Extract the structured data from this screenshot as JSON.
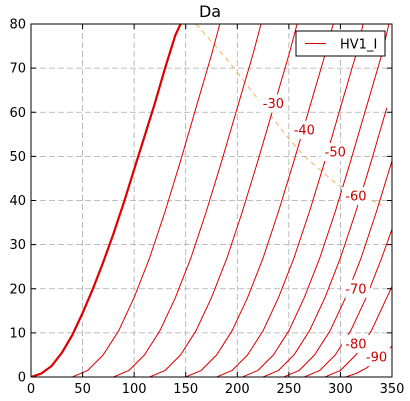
{
  "chart_data": {
    "type": "line",
    "title": "Da",
    "xlabel": "",
    "ylabel": "",
    "xlim": [
      0,
      350
    ],
    "ylim": [
      0,
      80
    ],
    "xticks": [
      0,
      50,
      100,
      150,
      200,
      250,
      300,
      350
    ],
    "yticks": [
      0,
      10,
      20,
      30,
      40,
      50,
      60,
      70,
      80
    ],
    "grid": true,
    "legend": {
      "placement": "top-right",
      "entries": [
        "HV1_I"
      ]
    },
    "colors": {
      "curves": "#dd0000",
      "limit_line": "#f5b060",
      "grid": "#aaaaaa"
    },
    "main_curve": {
      "name": "HV1_I",
      "points": [
        [
          0,
          0
        ],
        [
          10,
          0.8
        ],
        [
          20,
          2.5
        ],
        [
          30,
          5.5
        ],
        [
          40,
          9.5
        ],
        [
          50,
          14.5
        ],
        [
          60,
          20
        ],
        [
          70,
          26
        ],
        [
          80,
          32.5
        ],
        [
          90,
          39.5
        ],
        [
          100,
          47
        ],
        [
          110,
          54.5
        ],
        [
          120,
          62
        ],
        [
          130,
          70
        ],
        [
          140,
          77.5
        ],
        [
          145,
          80
        ]
      ]
    },
    "family": [
      {
        "label": "",
        "points": [
          [
            40,
            0
          ],
          [
            55,
            1.5
          ],
          [
            70,
            5
          ],
          [
            85,
            10.5
          ],
          [
            100,
            18
          ],
          [
            115,
            27
          ],
          [
            130,
            37.5
          ],
          [
            145,
            49
          ],
          [
            160,
            61
          ],
          [
            175,
            73
          ],
          [
            183,
            80
          ]
        ]
      },
      {
        "label": "",
        "points": [
          [
            80,
            0
          ],
          [
            95,
            1.5
          ],
          [
            110,
            5
          ],
          [
            125,
            10.5
          ],
          [
            140,
            18
          ],
          [
            155,
            27
          ],
          [
            170,
            37.5
          ],
          [
            185,
            49
          ],
          [
            200,
            61
          ],
          [
            215,
            73
          ],
          [
            223,
            80
          ]
        ]
      },
      {
        "label": "-30",
        "points": [
          [
            115,
            0
          ],
          [
            130,
            1.5
          ],
          [
            145,
            5
          ],
          [
            160,
            10.5
          ],
          [
            175,
            18
          ],
          [
            190,
            27
          ],
          [
            205,
            37.5
          ],
          [
            220,
            49
          ],
          [
            235,
            61
          ],
          [
            250,
            73
          ],
          [
            258,
            80
          ]
        ]
      },
      {
        "label": "-40",
        "points": [
          [
            150,
            0
          ],
          [
            165,
            1.5
          ],
          [
            180,
            5
          ],
          [
            195,
            10.5
          ],
          [
            210,
            18
          ],
          [
            225,
            27
          ],
          [
            240,
            37.5
          ],
          [
            255,
            49
          ],
          [
            270,
            61
          ],
          [
            285,
            73
          ],
          [
            293,
            80
          ]
        ]
      },
      {
        "label": "-50",
        "points": [
          [
            180,
            0
          ],
          [
            195,
            1.5
          ],
          [
            210,
            5
          ],
          [
            225,
            10.5
          ],
          [
            240,
            18
          ],
          [
            255,
            27
          ],
          [
            270,
            37.5
          ],
          [
            285,
            49
          ],
          [
            300,
            61
          ],
          [
            315,
            73
          ],
          [
            322,
            80
          ]
        ]
      },
      {
        "label": "-60",
        "points": [
          [
            205,
            0
          ],
          [
            220,
            1.5
          ],
          [
            235,
            5
          ],
          [
            250,
            10.5
          ],
          [
            265,
            18
          ],
          [
            280,
            27
          ],
          [
            295,
            37.5
          ],
          [
            310,
            49
          ],
          [
            325,
            61
          ],
          [
            340,
            73
          ],
          [
            347,
            80
          ]
        ]
      },
      {
        "label": "",
        "points": [
          [
            225,
            0
          ],
          [
            240,
            1.5
          ],
          [
            255,
            5
          ],
          [
            270,
            10.5
          ],
          [
            285,
            18
          ],
          [
            300,
            27
          ],
          [
            315,
            37.5
          ],
          [
            330,
            49
          ],
          [
            345,
            61
          ]
        ]
      },
      {
        "label": "-70",
        "points": [
          [
            245,
            0
          ],
          [
            260,
            1.5
          ],
          [
            275,
            5
          ],
          [
            290,
            10.5
          ],
          [
            305,
            18
          ],
          [
            320,
            27
          ],
          [
            335,
            37.5
          ],
          [
            350,
            49
          ]
        ]
      },
      {
        "label": "",
        "points": [
          [
            265,
            0
          ],
          [
            280,
            1.5
          ],
          [
            295,
            5
          ],
          [
            310,
            10.5
          ],
          [
            325,
            18
          ],
          [
            340,
            27
          ],
          [
            350,
            33.5
          ]
        ]
      },
      {
        "label": "-80",
        "points": [
          [
            285,
            0
          ],
          [
            300,
            1.5
          ],
          [
            315,
            5
          ],
          [
            330,
            10.5
          ],
          [
            345,
            18
          ],
          [
            350,
            20.5
          ]
        ]
      },
      {
        "label": "-90",
        "points": [
          [
            305,
            0
          ],
          [
            315,
            0.8
          ],
          [
            325,
            2
          ],
          [
            335,
            3.8
          ],
          [
            345,
            5.8
          ],
          [
            350,
            7
          ]
        ]
      }
    ],
    "labels": [
      {
        "text": "-30",
        "x": 235,
        "y": 62
      },
      {
        "text": "-40",
        "x": 265,
        "y": 56
      },
      {
        "text": "-50",
        "x": 295,
        "y": 51
      },
      {
        "text": "-60",
        "x": 315,
        "y": 41
      },
      {
        "text": "-70",
        "x": 315,
        "y": 20
      },
      {
        "text": "-80",
        "x": 315,
        "y": 7.5
      },
      {
        "text": "-90",
        "x": 335,
        "y": 4.5
      }
    ],
    "limit_line": {
      "points": [
        [
          160,
          80
        ],
        [
          175,
          76
        ],
        [
          190,
          72
        ],
        [
          205,
          67.5
        ],
        [
          220,
          63
        ],
        [
          235,
          58.5
        ],
        [
          250,
          54
        ],
        [
          265,
          50
        ],
        [
          280,
          47
        ],
        [
          295,
          44
        ],
        [
          310,
          42
        ],
        [
          325,
          40.5
        ],
        [
          340,
          39
        ]
      ]
    }
  }
}
